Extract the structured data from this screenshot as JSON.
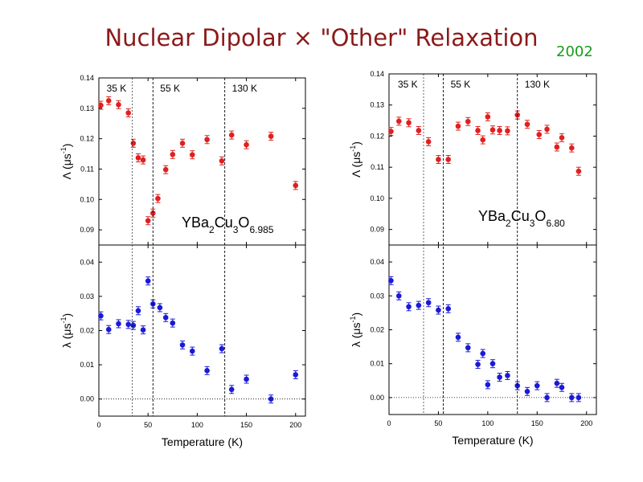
{
  "slide": {
    "title_main": "Nuclear Dipolar",
    "title_times": "×",
    "title_rest": "\"Other\" Relaxation",
    "year": "2002"
  },
  "colors": {
    "title": "#8b1a1a",
    "year": "#1a9a1a",
    "upper_series": "#e02020",
    "lower_series": "#1a1ad6",
    "dashed_lines": "#000000"
  },
  "chart_data": [
    {
      "type": "scatter",
      "sample": "YBa2Cu3O6.985",
      "sample_parts": [
        "YBa",
        "2",
        "Cu",
        "3",
        "O",
        "6.985"
      ],
      "xlabel": "Temperature (K)",
      "xlim": [
        0,
        210
      ],
      "xticks": [
        "0",
        "50",
        "100",
        "150",
        "200"
      ],
      "vertical_lines": [
        {
          "x": 34,
          "label": "35 K"
        },
        {
          "x": 55,
          "label": "55 K"
        },
        {
          "x": 128,
          "label": "130 K"
        }
      ],
      "upper": {
        "ylabel_symbol": "Λ",
        "ylabel_unit": "(μs",
        "ylabel_exp": "-1",
        "ylabel_close": ")",
        "ylim": [
          0.085,
          0.14
        ],
        "yticks": [
          "0.09",
          "0.10",
          "0.11",
          "0.12",
          "0.13",
          "0.14"
        ],
        "series": [
          {
            "x": [
              2,
              10,
              20,
              30,
              35,
              40,
              45,
              50,
              55,
              60,
              68,
              75,
              85,
              95,
              110,
              125,
              135,
              150,
              175,
              200
            ],
            "y": [
              0.131,
              0.1325,
              0.1312,
              0.1285,
              0.1185,
              0.1137,
              0.113,
              0.093,
              0.0955,
              0.1003,
              0.1098,
              0.1148,
              0.1185,
              0.1147,
              0.1197,
              0.1127,
              0.1212,
              0.118,
              0.1208,
              0.1046
            ]
          }
        ]
      },
      "lower": {
        "ylabel_symbol": "λ",
        "ylabel_unit": "(μs",
        "ylabel_exp": "-1",
        "ylabel_close": ")",
        "ylim": [
          -0.005,
          0.045
        ],
        "yticks": [
          "0.00",
          "0.01",
          "0.02",
          "0.03",
          "0.04"
        ],
        "series": [
          {
            "x": [
              2,
              10,
              20,
              30,
              35,
              40,
              45,
              50,
              55,
              62,
              68,
              75,
              85,
              95,
              110,
              125,
              135,
              150,
              175,
              200
            ],
            "y": [
              0.0243,
              0.0203,
              0.022,
              0.0218,
              0.0215,
              0.0258,
              0.0202,
              0.0345,
              0.0278,
              0.0267,
              0.0238,
              0.0222,
              0.0158,
              0.014,
              0.0083,
              0.0147,
              0.0028,
              0.0058,
              0.0,
              0.0071
            ]
          }
        ]
      }
    },
    {
      "type": "scatter",
      "sample": "YBa2Cu3O6.80",
      "sample_parts": [
        "YBa",
        "2",
        "Cu",
        "3",
        "O",
        "6.80"
      ],
      "xlabel": "Temperature (K)",
      "xlim": [
        0,
        210
      ],
      "xticks": [
        "0",
        "50",
        "100",
        "150",
        "200"
      ],
      "vertical_lines": [
        {
          "x": 35,
          "label": "35 K"
        },
        {
          "x": 55,
          "label": "55 K"
        },
        {
          "x": 130,
          "label": "130 K"
        }
      ],
      "upper": {
        "ylabel_symbol": "Λ",
        "ylabel_unit": "(μs",
        "ylabel_exp": "-1",
        "ylabel_close": ")",
        "ylim": [
          0.085,
          0.14
        ],
        "yticks": [
          "0.09",
          "0.10",
          "0.11",
          "0.12",
          "0.13",
          "0.14"
        ],
        "series": [
          {
            "x": [
              2,
              10,
              20,
              30,
              40,
              50,
              60,
              70,
              80,
              90,
              95,
              100,
              105,
              112,
              120,
              130,
              140,
              152,
              160,
              170,
              175,
              185,
              192
            ],
            "y": [
              0.1215,
              0.1248,
              0.1243,
              0.1218,
              0.1182,
              0.1125,
              0.1125,
              0.1232,
              0.1247,
              0.1218,
              0.1188,
              0.1262,
              0.122,
              0.1218,
              0.1217,
              0.1268,
              0.1238,
              0.1205,
              0.1222,
              0.1165,
              0.1195,
              0.1162,
              0.1087
            ]
          }
        ]
      },
      "lower": {
        "ylabel_symbol": "λ",
        "ylabel_unit": "(μs",
        "ylabel_exp": "-1",
        "ylabel_close": ")",
        "ylim": [
          -0.005,
          0.045
        ],
        "yticks": [
          "0.00",
          "0.01",
          "0.02",
          "0.03",
          "0.04"
        ],
        "series": [
          {
            "x": [
              2,
              10,
              20,
              30,
              40,
              50,
              60,
              70,
              80,
              90,
              95,
              100,
              105,
              112,
              120,
              130,
              140,
              150,
              160,
              170,
              175,
              185,
              192
            ],
            "y": [
              0.0345,
              0.03,
              0.0268,
              0.0272,
              0.028,
              0.0258,
              0.0262,
              0.0178,
              0.0147,
              0.0098,
              0.013,
              0.0038,
              0.01,
              0.006,
              0.0065,
              0.0035,
              0.0018,
              0.0035,
              0.0,
              0.0042,
              0.003,
              0.0,
              0.0
            ]
          }
        ]
      }
    }
  ]
}
